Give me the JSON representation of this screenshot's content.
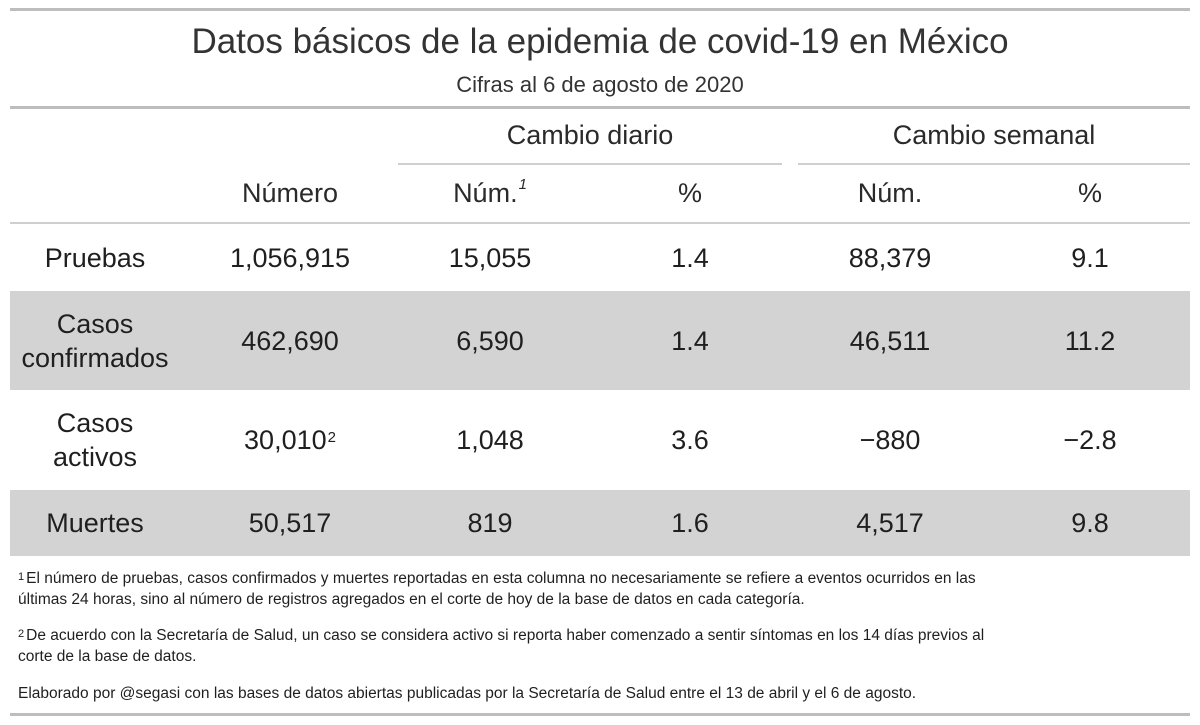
{
  "title": "Datos básicos de la epidemia de covid-19 en México",
  "subtitle": "Cifras al 6 de agosto de 2020",
  "headers": {
    "group_daily": "Cambio diario",
    "group_weekly": "Cambio semanal",
    "numero": "Número",
    "daily_num": "Núm.",
    "daily_num_sup": "1",
    "daily_pct": "%",
    "weekly_num": "Núm.",
    "weekly_pct": "%"
  },
  "rows": [
    {
      "label": "Pruebas",
      "numero": "1,056,915",
      "daily_num": "15,055",
      "daily_pct": "1.4",
      "weekly_num": "88,379",
      "weekly_pct": "9.1"
    },
    {
      "label_line1": "Casos",
      "label_line2": "confirmados",
      "numero": "462,690",
      "daily_num": "6,590",
      "daily_pct": "1.4",
      "weekly_num": "46,511",
      "weekly_pct": "11.2"
    },
    {
      "label_line1": "Casos",
      "label_line2": "activos",
      "numero": "30,010",
      "numero_sup": "2",
      "daily_num": "1,048",
      "daily_pct": "3.6",
      "weekly_num": "−880",
      "weekly_pct": "−2.8"
    },
    {
      "label": "Muertes",
      "numero": "50,517",
      "daily_num": "819",
      "daily_pct": "1.6",
      "weekly_num": "4,517",
      "weekly_pct": "9.8"
    }
  ],
  "notes": {
    "note1_mark": "1",
    "note1_line1": "El número de pruebas, casos confirmados y muertes reportadas en esta columna no necesariamente se refiere a eventos ocurridos en las",
    "note1_line2": "últimas 24 horas, sino al número de registros agregados en el corte de hoy de la base de datos en cada categoría.",
    "note2_mark": "2",
    "note2_line1": "De acuerdo con la Secretaría de Salud, un caso se considera activo si reporta haber comenzado a sentir síntomas en los 14 días previos al",
    "note2_line2": "corte de la base de datos.",
    "credit": "Elaborado por @segasi con las bases de datos abiertas publicadas por la Secretaría de Salud entre el 13 de abril y el 6 de agosto."
  }
}
